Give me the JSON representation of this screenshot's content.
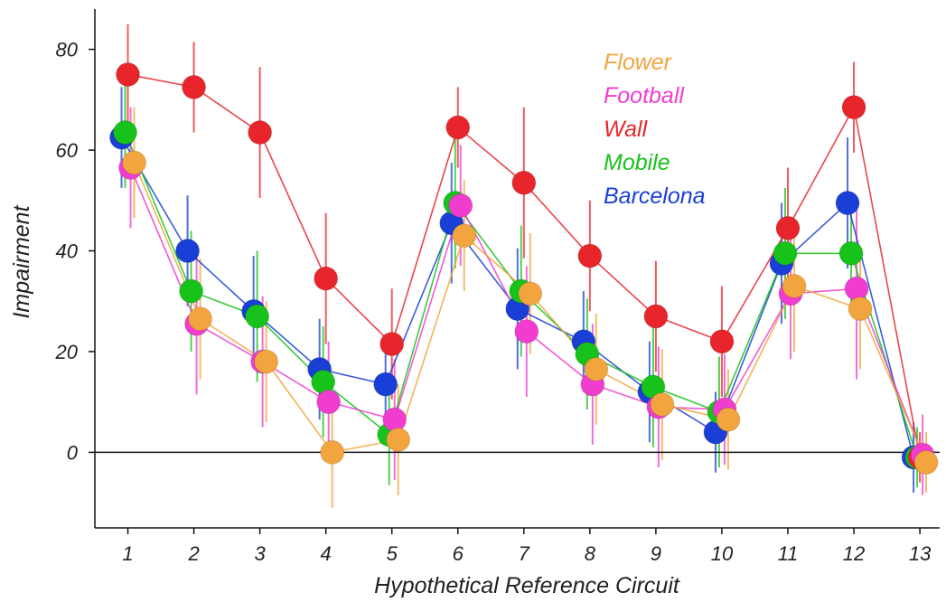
{
  "chart_data": {
    "type": "scatter",
    "title": "",
    "xlabel": "Hypothetical Reference Circuit",
    "ylabel": "Impairment",
    "xlim": [
      0.5,
      13.3
    ],
    "ylim": [
      -15,
      88
    ],
    "x": [
      1,
      2,
      3,
      4,
      5,
      6,
      7,
      8,
      9,
      10,
      11,
      12,
      13
    ],
    "x_tick_labels": [
      "1",
      "2",
      "3",
      "4",
      "5",
      "6",
      "7",
      "8",
      "9",
      "10",
      "11",
      "12",
      "13"
    ],
    "y_ticks": [
      0,
      20,
      40,
      60,
      80
    ],
    "y_tick_labels": [
      "0",
      "20",
      "40",
      "60",
      "80"
    ],
    "reference_line": 0,
    "grid": false,
    "legend_position": "top-right",
    "series": [
      {
        "name": "Barcelona",
        "color": "#1a3fd6",
        "values": [
          62.5,
          40,
          28,
          16.5,
          13.5,
          45.5,
          28.5,
          22,
          12,
          4,
          37.5,
          49.5,
          -1
        ],
        "errors": [
          10,
          11,
          11,
          10,
          10,
          12,
          12,
          10,
          10,
          8,
          12,
          13,
          7
        ]
      },
      {
        "name": "Mobile",
        "color": "#17c21a",
        "values": [
          63.5,
          32,
          27,
          14,
          3.5,
          49.5,
          32,
          19.5,
          13,
          8,
          39.5,
          39.5,
          -1
        ],
        "errors": [
          11,
          12,
          13,
          11,
          10,
          13,
          13,
          11,
          12,
          11,
          13,
          12,
          6
        ]
      },
      {
        "name": "Wall",
        "color": "#e8252a",
        "values": [
          75,
          72.5,
          63.5,
          34.5,
          21.5,
          64.5,
          53.5,
          39,
          27,
          22,
          44.5,
          68.5,
          -1
        ],
        "errors": [
          10,
          9,
          13,
          13,
          11,
          8,
          15,
          11,
          11,
          11,
          12,
          9,
          5
        ]
      },
      {
        "name": "Football",
        "color": "#f03ccf",
        "values": [
          56.5,
          25.5,
          18,
          10,
          6.5,
          49,
          24,
          13.5,
          9,
          8.5,
          31.5,
          32.5,
          -0.5
        ],
        "errors": [
          12,
          14,
          13,
          12,
          12,
          12,
          13,
          12,
          12,
          11,
          13,
          18,
          8
        ]
      },
      {
        "name": "Flower",
        "color": "#f2a43e",
        "values": [
          57.5,
          26.5,
          18,
          0,
          2.5,
          43,
          31.5,
          16.5,
          9.5,
          6.5,
          33,
          28.5,
          -2
        ],
        "errors": [
          11,
          12,
          12,
          11,
          11,
          11,
          12,
          11,
          11,
          10,
          13,
          12,
          6
        ]
      }
    ],
    "legend_order": [
      "Flower",
      "Football",
      "Wall",
      "Mobile",
      "Barcelona"
    ]
  }
}
